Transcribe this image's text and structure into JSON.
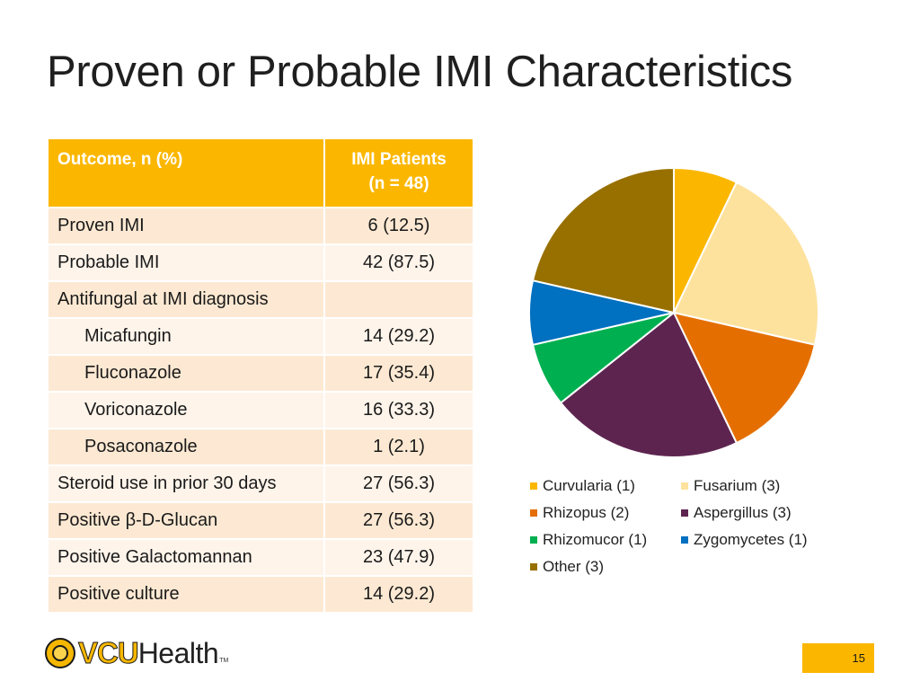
{
  "title": "Proven or Probable IMI Characteristics",
  "table": {
    "headers": {
      "col1": "Outcome, n (%)",
      "col2_line1": "IMI Patients",
      "col2_line2": "(n = 48)"
    },
    "rows": [
      {
        "label": "Proven IMI",
        "value": "6 (12.5)"
      },
      {
        "label": "Probable IMI",
        "value": "42 (87.5)"
      },
      {
        "label": "Antifungal at IMI diagnosis",
        "value": ""
      },
      {
        "label": "Micafungin",
        "value": "14 (29.2)"
      },
      {
        "label": "Fluconazole",
        "value": "17 (35.4)"
      },
      {
        "label": "Voriconazole",
        "value": "16 (33.3)"
      },
      {
        "label": "Posaconazole",
        "value": "1 (2.1)"
      },
      {
        "label": "Steroid use in prior 30 days",
        "value": "27 (56.3)"
      },
      {
        "label": "Positive β-D-Glucan",
        "value": "27 (56.3)"
      },
      {
        "label": "Positive Galactomannan",
        "value": "23 (47.9)"
      },
      {
        "label": "Positive culture",
        "value": "14 (29.2)"
      }
    ]
  },
  "chart_data": {
    "type": "pie",
    "categories": [
      "Curvularia",
      "Fusarium",
      "Rhizopus",
      "Aspergillus",
      "Rhizomucor",
      "Zygomycetes",
      "Other"
    ],
    "values": [
      1,
      3,
      2,
      3,
      1,
      1,
      3
    ],
    "colors": [
      "#fbb700",
      "#fde29e",
      "#e46f00",
      "#5e2450",
      "#00b050",
      "#0070c0",
      "#987000"
    ],
    "legend": [
      "Curvularia (1)",
      "Fusarium (3)",
      "Rhizopus (2)",
      "Aspergillus (3)",
      "Rhizomucor (1)",
      "Zygomycetes (1)",
      "Other (3)"
    ],
    "legend_position": "bottom"
  },
  "logo": {
    "bold": "VCU",
    "light": "Health",
    "tm": "TM"
  },
  "page_number": "15"
}
